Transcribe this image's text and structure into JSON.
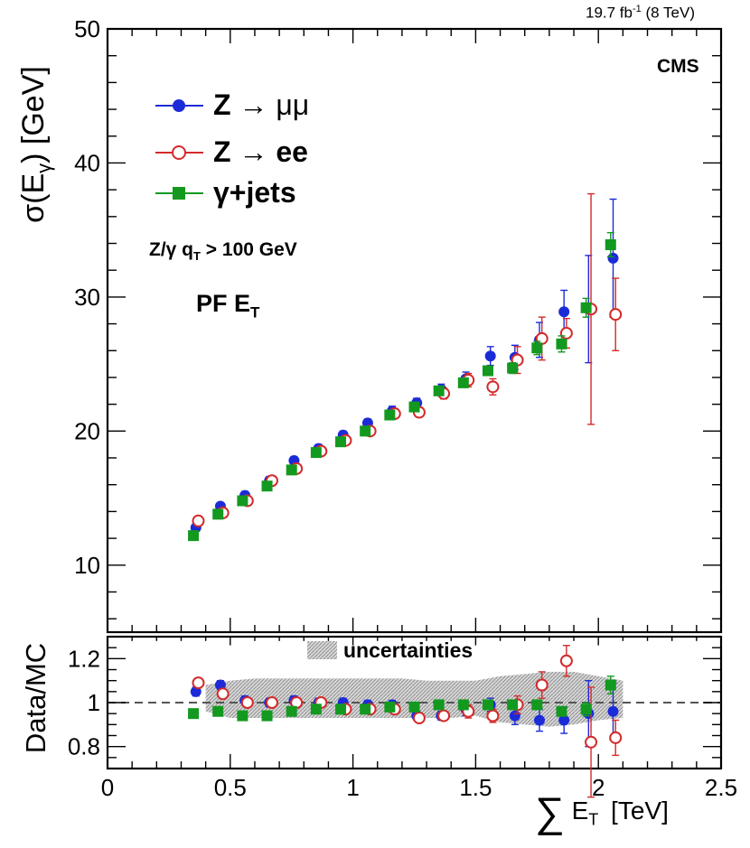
{
  "header": {
    "lumi": "19.7 fb",
    "lumi_sup": "-1",
    "energy": "(8 TeV)",
    "experiment": "CMS"
  },
  "annotations": {
    "selection_main": "Z/γ q",
    "selection_sub": "T",
    "selection_rest": " > 100 GeV",
    "method_main": "PF E",
    "method_sub": "T"
  },
  "legend": {
    "mumu": {
      "prefix": "Z → ",
      "suffix": "μμ"
    },
    "ee": {
      "prefix": "Z → ",
      "suffix": "ee"
    },
    "gjets": {
      "label": "γ+jets"
    },
    "uncertainties": "uncertainties"
  },
  "axes": {
    "ylabel_main": "σ(E",
    "ylabel_sub": "γ",
    "ylabel_rest": ") [GeV]",
    "ylabel_ratio": "Data/MC",
    "xlabel_sym": "∑",
    "xlabel_e": "E",
    "xlabel_sub": "T",
    "xlabel_unit": "[TeV]"
  },
  "colors": {
    "mumu": "#1c2bd8",
    "ee": "#d42a2a",
    "gjets": "#13991f",
    "band": "#b8b8b8",
    "refline": "#555555"
  },
  "chart_data": [
    {
      "type": "scatter",
      "panel": "main",
      "ylabel": "σ(E_γ) [GeV]",
      "xlim": [
        0,
        2.5
      ],
      "ylim": [
        5,
        50
      ],
      "yticks": [
        10,
        20,
        30,
        40,
        50
      ],
      "series": [
        {
          "name": "Z → μμ",
          "marker": "filled-circle",
          "color": "#1c2bd8",
          "x": [
            0.36,
            0.46,
            0.56,
            0.66,
            0.76,
            0.86,
            0.96,
            1.06,
            1.16,
            1.26,
            1.36,
            1.46,
            1.56,
            1.66,
            1.76,
            1.86,
            1.96,
            2.06
          ],
          "y": [
            12.8,
            14.4,
            15.2,
            16.3,
            17.8,
            18.7,
            19.7,
            20.6,
            21.5,
            22.1,
            23.1,
            23.9,
            25.6,
            25.5,
            26.8,
            28.9,
            29.1,
            32.9
          ],
          "err": [
            0.25,
            0.25,
            0.3,
            0.3,
            0.3,
            0.3,
            0.3,
            0.3,
            0.35,
            0.35,
            0.4,
            0.5,
            0.7,
            0.9,
            1.3,
            1.6,
            4.0,
            4.4
          ]
        },
        {
          "name": "Z → ee",
          "marker": "open-circle",
          "color": "#d42a2a",
          "x": [
            0.37,
            0.47,
            0.57,
            0.67,
            0.77,
            0.87,
            0.97,
            1.07,
            1.17,
            1.27,
            1.37,
            1.47,
            1.57,
            1.67,
            1.77,
            1.87,
            1.97,
            2.07
          ],
          "y": [
            13.3,
            13.9,
            14.8,
            16.3,
            17.2,
            18.5,
            19.3,
            20.0,
            21.3,
            21.4,
            22.8,
            23.8,
            23.3,
            25.3,
            26.9,
            27.3,
            29.1,
            28.7
          ],
          "err": [
            0.25,
            0.25,
            0.3,
            0.3,
            0.3,
            0.3,
            0.3,
            0.3,
            0.35,
            0.35,
            0.4,
            0.5,
            0.6,
            1.0,
            1.6,
            1.1,
            8.6,
            2.7
          ]
        },
        {
          "name": "γ+jets",
          "marker": "filled-square",
          "color": "#13991f",
          "x": [
            0.35,
            0.45,
            0.55,
            0.65,
            0.75,
            0.85,
            0.95,
            1.05,
            1.15,
            1.25,
            1.35,
            1.45,
            1.55,
            1.65,
            1.75,
            1.85,
            1.95,
            2.05
          ],
          "y": [
            12.2,
            13.8,
            14.8,
            15.9,
            17.1,
            18.4,
            19.2,
            20.0,
            21.2,
            21.8,
            23.0,
            23.6,
            24.5,
            24.7,
            26.2,
            26.5,
            29.2,
            33.9
          ],
          "err": [
            0.2,
            0.2,
            0.2,
            0.2,
            0.2,
            0.2,
            0.2,
            0.2,
            0.2,
            0.25,
            0.25,
            0.3,
            0.3,
            0.4,
            0.5,
            0.6,
            0.7,
            0.9
          ]
        }
      ]
    },
    {
      "type": "scatter",
      "panel": "ratio",
      "xlabel": "∑ E_T [TeV]",
      "ylabel": "Data/MC",
      "xlim": [
        0,
        2.5
      ],
      "ylim": [
        0.7,
        1.3
      ],
      "xticks": [
        0,
        0.5,
        1,
        1.5,
        2,
        2.5
      ],
      "xtick_labels": [
        "0",
        "0.5",
        "1",
        "1.5",
        "2",
        "2.5"
      ],
      "yticks": [
        0.8,
        1,
        1.2
      ],
      "ytick_labels": [
        "0.8",
        "1",
        "1.2"
      ],
      "reference_line": 1,
      "uncertainty_band": {
        "x": [
          0.4,
          0.5,
          0.6,
          0.7,
          0.8,
          0.9,
          1.0,
          1.1,
          1.2,
          1.3,
          1.4,
          1.5,
          1.6,
          1.7,
          1.8,
          1.9,
          2.0,
          2.1
        ],
        "low": [
          0.96,
          0.93,
          0.93,
          0.93,
          0.93,
          0.93,
          0.93,
          0.93,
          0.93,
          0.93,
          0.93,
          0.94,
          0.91,
          0.9,
          0.89,
          0.9,
          0.92,
          0.93
        ],
        "high": [
          1.08,
          1.1,
          1.11,
          1.11,
          1.11,
          1.11,
          1.11,
          1.11,
          1.11,
          1.1,
          1.1,
          1.1,
          1.12,
          1.13,
          1.14,
          1.14,
          1.12,
          1.1
        ]
      },
      "series": [
        {
          "name": "Z → μμ",
          "marker": "filled-circle",
          "color": "#1c2bd8",
          "x": [
            0.36,
            0.46,
            0.56,
            0.66,
            0.76,
            0.86,
            0.96,
            1.06,
            1.16,
            1.26,
            1.36,
            1.46,
            1.56,
            1.66,
            1.76,
            1.86,
            1.96,
            2.06
          ],
          "y": [
            1.05,
            1.08,
            1.01,
            1.0,
            1.01,
            1.0,
            1.0,
            0.99,
            0.99,
            0.94,
            0.94,
            0.97,
            0.99,
            0.94,
            0.92,
            0.92,
            0.95,
            0.96
          ],
          "err": [
            0.02,
            0.02,
            0.02,
            0.02,
            0.02,
            0.02,
            0.02,
            0.02,
            0.02,
            0.02,
            0.02,
            0.03,
            0.03,
            0.04,
            0.05,
            0.06,
            0.15,
            0.13
          ]
        },
        {
          "name": "Z → ee",
          "marker": "open-circle",
          "color": "#d42a2a",
          "x": [
            0.37,
            0.47,
            0.57,
            0.67,
            0.77,
            0.87,
            0.97,
            1.07,
            1.17,
            1.27,
            1.37,
            1.47,
            1.57,
            1.67,
            1.77,
            1.87,
            1.97,
            2.07
          ],
          "y": [
            1.09,
            1.04,
            1.0,
            1.0,
            1.0,
            1.0,
            0.97,
            0.97,
            0.97,
            0.93,
            0.94,
            0.96,
            0.94,
            0.99,
            1.08,
            1.19,
            0.82,
            0.84
          ],
          "err": [
            0.02,
            0.02,
            0.02,
            0.02,
            0.02,
            0.02,
            0.02,
            0.02,
            0.02,
            0.02,
            0.02,
            0.03,
            0.03,
            0.04,
            0.06,
            0.07,
            0.25,
            0.08
          ]
        },
        {
          "name": "γ+jets",
          "marker": "filled-square",
          "color": "#13991f",
          "x": [
            0.35,
            0.45,
            0.55,
            0.65,
            0.75,
            0.85,
            0.95,
            1.05,
            1.15,
            1.25,
            1.35,
            1.45,
            1.55,
            1.65,
            1.75,
            1.85,
            1.95,
            2.05
          ],
          "y": [
            0.95,
            0.96,
            0.94,
            0.94,
            0.96,
            0.97,
            0.97,
            0.97,
            0.98,
            0.98,
            0.99,
            0.99,
            0.99,
            0.99,
            0.99,
            0.96,
            0.97,
            1.08
          ],
          "err": [
            0.01,
            0.01,
            0.01,
            0.01,
            0.01,
            0.01,
            0.01,
            0.01,
            0.01,
            0.01,
            0.01,
            0.01,
            0.01,
            0.01,
            0.02,
            0.02,
            0.03,
            0.04
          ]
        }
      ]
    }
  ]
}
